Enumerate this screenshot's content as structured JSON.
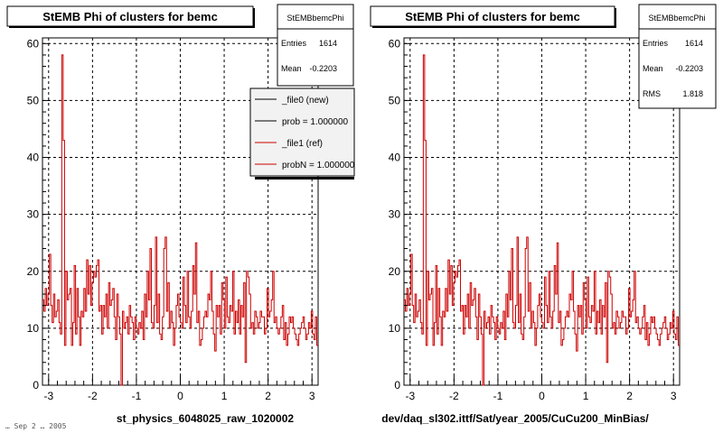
{
  "footer_text": "… Sep 2 … 2005",
  "panels": [
    {
      "title": "StEMB Phi of clusters for bemc",
      "xlabel": "st_physics_6048025_raw_1020002",
      "stats": {
        "name": "StEMBbemcPhi",
        "rows": [
          {
            "label": "Entries",
            "value": "1614"
          },
          {
            "label": "Mean",
            "value": "-0.2203"
          }
        ]
      },
      "legend": {
        "entries": [
          {
            "label": "_file0 (new)",
            "color": "#000000"
          },
          {
            "label": "prob = 1.000000",
            "color": "#000000"
          },
          {
            "label": "_file1 (ref)",
            "color": "#cc0000"
          },
          {
            "label": "probN = 1.000000",
            "color": "#cc0000"
          }
        ]
      }
    },
    {
      "title": "StEMB Phi of clusters for bemc",
      "xlabel": "dev/daq_sl302.ittf/Sat/year_2005/CuCu200_MinBias/",
      "stats": {
        "name": "StEMBbemcPhi",
        "rows": [
          {
            "label": "Entries",
            "value": "1614"
          },
          {
            "label": "Mean",
            "value": "-0.2203"
          },
          {
            "label": "RMS",
            "value": "1.818"
          }
        ]
      }
    }
  ],
  "chart_data": [
    {
      "type": "histogram",
      "title": "StEMB Phi of clusters for bemc",
      "xlabel": "st_physics_6048025_raw_1020002",
      "ylabel": "",
      "xlim": [
        -3.14,
        3.14
      ],
      "ylim": [
        0,
        61
      ],
      "xticks": [
        -3,
        -2,
        -1,
        0,
        1,
        2,
        3
      ],
      "yticks": [
        0,
        10,
        20,
        30,
        40,
        50,
        60
      ],
      "grid": true,
      "series": [
        {
          "color": "#cc0000",
          "values": [
            15,
            13,
            17,
            14,
            16,
            23,
            14,
            11,
            16,
            12,
            13,
            15,
            11,
            9,
            58,
            43,
            7,
            20,
            15,
            16,
            17,
            7,
            11,
            21,
            9,
            17,
            12,
            7,
            13,
            12,
            17,
            13,
            22,
            16,
            21,
            14,
            18,
            20,
            19,
            21,
            22,
            13,
            14,
            9,
            14,
            12,
            16,
            10,
            18,
            14,
            15,
            17,
            12,
            8,
            16,
            12,
            9,
            0,
            13,
            10,
            11,
            12,
            9,
            14,
            12,
            11,
            8,
            12,
            10,
            9,
            11,
            10,
            13,
            8,
            16,
            12,
            20,
            15,
            24,
            11,
            10,
            14,
            26,
            11,
            16,
            9,
            8,
            12,
            24,
            26,
            13,
            18,
            10,
            13,
            11,
            7,
            10,
            14,
            16,
            12,
            11,
            10,
            19,
            14,
            11,
            20,
            12,
            10,
            13,
            21,
            16,
            25,
            11,
            13,
            7,
            8,
            10,
            12,
            13,
            12,
            16,
            15,
            20,
            13,
            9,
            6,
            14,
            12,
            14,
            9,
            18,
            15,
            10,
            19,
            12,
            11,
            14,
            13,
            20,
            9,
            13,
            11,
            15,
            9,
            14,
            12,
            18,
            4,
            20,
            19,
            16,
            10,
            11,
            9,
            13,
            12,
            10,
            11,
            13,
            12,
            12,
            9,
            10,
            17,
            12,
            13,
            15,
            20,
            11,
            12,
            10,
            9,
            10,
            12,
            14,
            8,
            11,
            7,
            9,
            12,
            11,
            12,
            10,
            9,
            8,
            7,
            9,
            10,
            11,
            12,
            10,
            8,
            9,
            11,
            10,
            13,
            9,
            8,
            12,
            7
          ]
        }
      ]
    },
    {
      "type": "histogram",
      "title": "StEMB Phi of clusters for bemc",
      "xlabel": "dev/daq_sl302.ittf/Sat/year_2005/CuCu200_MinBias/",
      "ylabel": "",
      "xlim": [
        -3.14,
        3.14
      ],
      "ylim": [
        0,
        61
      ],
      "xticks": [
        -3,
        -2,
        -1,
        0,
        1,
        2,
        3
      ],
      "yticks": [
        0,
        10,
        20,
        30,
        40,
        50,
        60
      ],
      "grid": true,
      "series": [
        {
          "color": "#cc0000",
          "values": [
            15,
            13,
            17,
            14,
            16,
            23,
            14,
            11,
            16,
            12,
            13,
            15,
            11,
            9,
            58,
            43,
            7,
            20,
            15,
            16,
            17,
            7,
            11,
            21,
            9,
            17,
            12,
            7,
            13,
            12,
            17,
            13,
            22,
            16,
            21,
            14,
            18,
            20,
            19,
            21,
            22,
            13,
            14,
            9,
            14,
            12,
            16,
            10,
            18,
            14,
            15,
            17,
            12,
            8,
            16,
            12,
            9,
            0,
            13,
            10,
            11,
            12,
            9,
            14,
            12,
            11,
            8,
            12,
            10,
            9,
            11,
            10,
            13,
            8,
            16,
            12,
            20,
            15,
            24,
            11,
            10,
            14,
            26,
            11,
            16,
            9,
            8,
            12,
            24,
            26,
            13,
            18,
            10,
            13,
            11,
            7,
            10,
            14,
            16,
            12,
            11,
            10,
            19,
            14,
            11,
            20,
            12,
            10,
            13,
            21,
            16,
            25,
            11,
            13,
            7,
            8,
            10,
            12,
            13,
            12,
            16,
            15,
            20,
            13,
            9,
            6,
            14,
            12,
            14,
            9,
            18,
            15,
            10,
            19,
            12,
            11,
            14,
            13,
            20,
            9,
            13,
            11,
            15,
            9,
            14,
            12,
            18,
            4,
            20,
            19,
            16,
            10,
            11,
            9,
            13,
            12,
            10,
            11,
            13,
            12,
            12,
            9,
            10,
            17,
            12,
            13,
            15,
            20,
            11,
            12,
            10,
            9,
            10,
            12,
            14,
            8,
            11,
            7,
            9,
            12,
            11,
            12,
            10,
            9,
            8,
            7,
            9,
            10,
            11,
            12,
            10,
            8,
            9,
            11,
            10,
            13,
            9,
            8,
            12,
            7
          ]
        }
      ]
    }
  ]
}
